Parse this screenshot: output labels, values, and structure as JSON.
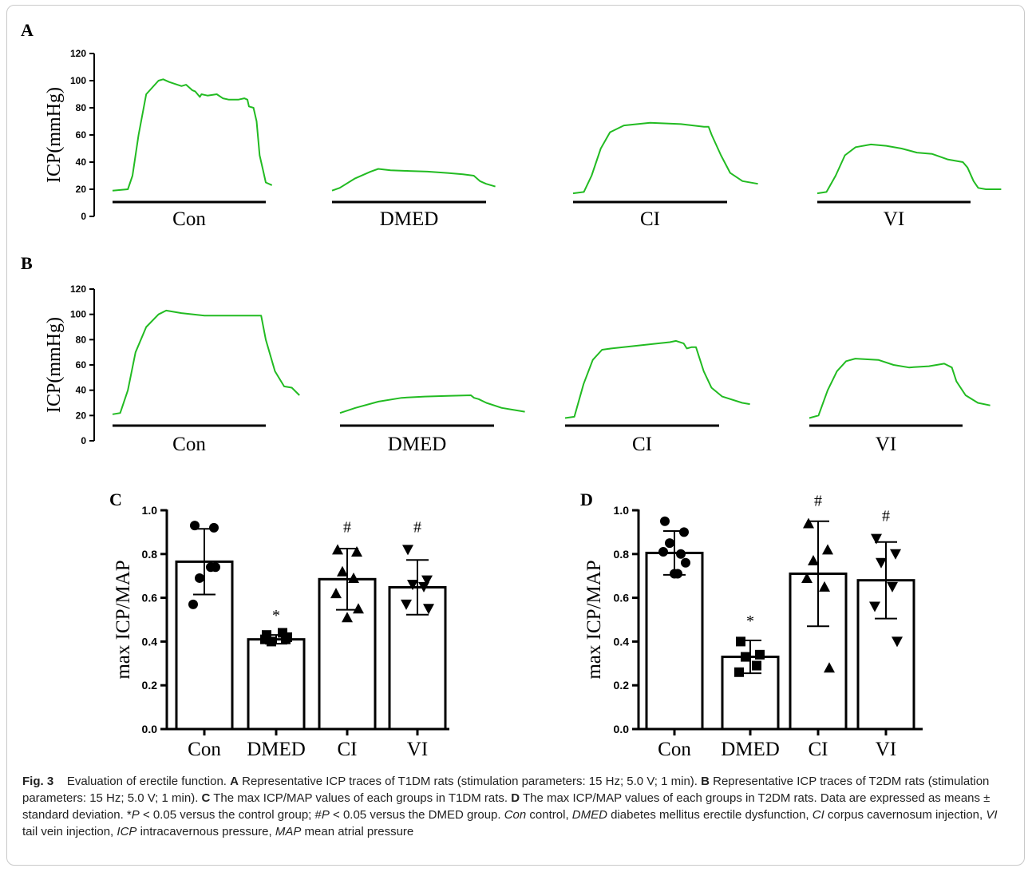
{
  "chart_data": [
    {
      "panel": "A",
      "type": "line",
      "ylabel": "ICP(mmHg)",
      "ylim": [
        0,
        120
      ],
      "yticks": [
        0,
        20,
        40,
        60,
        80,
        100,
        120
      ],
      "line_color": "#22bb22",
      "traces": [
        {
          "label": "Con",
          "points": [
            [
              0,
              19
            ],
            [
              0.1,
              20
            ],
            [
              0.13,
              30
            ],
            [
              0.17,
              60
            ],
            [
              0.22,
              90
            ],
            [
              0.3,
              100
            ],
            [
              0.33,
              101
            ],
            [
              0.37,
              99
            ],
            [
              0.45,
              96
            ],
            [
              0.48,
              97
            ],
            [
              0.52,
              93
            ],
            [
              0.54,
              92
            ],
            [
              0.57,
              88
            ],
            [
              0.58,
              90
            ],
            [
              0.62,
              89
            ],
            [
              0.68,
              90
            ],
            [
              0.72,
              87
            ],
            [
              0.76,
              86
            ],
            [
              0.82,
              86
            ],
            [
              0.86,
              87
            ],
            [
              0.88,
              86
            ],
            [
              0.89,
              81
            ],
            [
              0.92,
              80
            ],
            [
              0.94,
              70
            ],
            [
              0.96,
              45
            ],
            [
              0.98,
              35
            ],
            [
              1.0,
              25
            ],
            [
              1.04,
              23
            ]
          ]
        },
        {
          "label": "DMED",
          "points": [
            [
              0,
              19
            ],
            [
              0.05,
              21
            ],
            [
              0.15,
              28
            ],
            [
              0.25,
              33
            ],
            [
              0.3,
              35
            ],
            [
              0.38,
              34
            ],
            [
              0.5,
              33.5
            ],
            [
              0.62,
              33
            ],
            [
              0.75,
              32
            ],
            [
              0.85,
              31
            ],
            [
              0.92,
              30
            ],
            [
              0.96,
              26
            ],
            [
              1.0,
              24
            ],
            [
              1.06,
              22
            ]
          ]
        },
        {
          "label": "CI",
          "points": [
            [
              0,
              17
            ],
            [
              0.07,
              18
            ],
            [
              0.12,
              30
            ],
            [
              0.18,
              50
            ],
            [
              0.24,
              62
            ],
            [
              0.33,
              67
            ],
            [
              0.5,
              69
            ],
            [
              0.7,
              68
            ],
            [
              0.85,
              66
            ],
            [
              0.88,
              66
            ],
            [
              0.9,
              60
            ],
            [
              0.96,
              45
            ],
            [
              1.02,
              32
            ],
            [
              1.1,
              26
            ],
            [
              1.2,
              24
            ]
          ]
        },
        {
          "label": "VI",
          "points": [
            [
              0,
              17
            ],
            [
              0.06,
              18
            ],
            [
              0.12,
              30
            ],
            [
              0.18,
              45
            ],
            [
              0.25,
              51
            ],
            [
              0.35,
              53
            ],
            [
              0.45,
              52
            ],
            [
              0.55,
              50
            ],
            [
              0.65,
              47
            ],
            [
              0.75,
              46
            ],
            [
              0.85,
              42
            ],
            [
              0.95,
              40
            ],
            [
              0.98,
              36
            ],
            [
              1.02,
              26
            ],
            [
              1.05,
              21
            ],
            [
              1.1,
              20
            ],
            [
              1.2,
              20
            ]
          ]
        }
      ]
    },
    {
      "panel": "B",
      "type": "line",
      "ylabel": "ICP(mmHg)",
      "ylim": [
        0,
        120
      ],
      "yticks": [
        0,
        20,
        40,
        60,
        80,
        100,
        120
      ],
      "line_color": "#22bb22",
      "traces": [
        {
          "label": "Con",
          "points": [
            [
              0,
              21
            ],
            [
              0.05,
              22
            ],
            [
              0.1,
              40
            ],
            [
              0.15,
              70
            ],
            [
              0.22,
              90
            ],
            [
              0.3,
              100
            ],
            [
              0.35,
              103
            ],
            [
              0.45,
              101
            ],
            [
              0.6,
              99
            ],
            [
              0.75,
              99
            ],
            [
              0.9,
              99
            ],
            [
              0.97,
              99
            ],
            [
              1.0,
              80
            ],
            [
              1.06,
              55
            ],
            [
              1.12,
              43
            ],
            [
              1.17,
              42
            ],
            [
              1.22,
              36
            ]
          ]
        },
        {
          "label": "DMED",
          "points": [
            [
              0,
              22
            ],
            [
              0.1,
              26
            ],
            [
              0.25,
              31
            ],
            [
              0.4,
              34
            ],
            [
              0.55,
              35
            ],
            [
              0.7,
              35.5
            ],
            [
              0.85,
              36
            ],
            [
              0.87,
              34
            ],
            [
              0.9,
              33
            ],
            [
              0.95,
              30
            ],
            [
              1.05,
              26
            ],
            [
              1.2,
              23
            ]
          ]
        },
        {
          "label": "CI",
          "points": [
            [
              0,
              18
            ],
            [
              0.06,
              19
            ],
            [
              0.12,
              45
            ],
            [
              0.18,
              64
            ],
            [
              0.24,
              72
            ],
            [
              0.3,
              73
            ],
            [
              0.45,
              75
            ],
            [
              0.6,
              77
            ],
            [
              0.68,
              78
            ],
            [
              0.72,
              79
            ],
            [
              0.77,
              77
            ],
            [
              0.79,
              73
            ],
            [
              0.82,
              74
            ],
            [
              0.85,
              74
            ],
            [
              0.9,
              55
            ],
            [
              0.95,
              42
            ],
            [
              1.02,
              35
            ],
            [
              1.15,
              30
            ],
            [
              1.2,
              29
            ]
          ]
        },
        {
          "label": "VI",
          "points": [
            [
              0,
              18
            ],
            [
              0.06,
              20
            ],
            [
              0.12,
              40
            ],
            [
              0.18,
              55
            ],
            [
              0.24,
              63
            ],
            [
              0.3,
              65
            ],
            [
              0.45,
              64
            ],
            [
              0.55,
              60
            ],
            [
              0.65,
              58
            ],
            [
              0.78,
              59
            ],
            [
              0.88,
              61
            ],
            [
              0.93,
              58
            ],
            [
              0.96,
              47
            ],
            [
              1.02,
              36
            ],
            [
              1.1,
              30
            ],
            [
              1.18,
              28
            ]
          ]
        }
      ]
    },
    {
      "panel": "C",
      "type": "bar",
      "ylabel": "max ICP/MAP",
      "ylim": [
        0,
        1.0
      ],
      "yticks": [
        "0.0",
        "0.2",
        "0.4",
        "0.6",
        "0.8",
        "1.0"
      ],
      "categories": [
        "Con",
        "DMED",
        "CI",
        "VI"
      ],
      "values": [
        0.765,
        0.41,
        0.685,
        0.648
      ],
      "sd": [
        0.15,
        0.02,
        0.14,
        0.125
      ],
      "annotations": [
        "",
        "*",
        "#",
        "#"
      ],
      "markers": [
        "circle",
        "square",
        "triangle-up",
        "triangle-down"
      ],
      "points": [
        [
          0.93,
          0.92,
          0.69,
          0.74,
          0.57,
          0.74
        ],
        [
          0.43,
          0.41,
          0.4,
          0.44,
          0.41,
          0.42
        ],
        [
          0.82,
          0.81,
          0.72,
          0.69,
          0.62,
          0.55,
          0.51
        ],
        [
          0.82,
          0.68,
          0.66,
          0.65,
          0.57,
          0.55
        ]
      ]
    },
    {
      "panel": "D",
      "type": "bar",
      "ylabel": "max ICP/MAP",
      "ylim": [
        0,
        1.0
      ],
      "yticks": [
        "0.0",
        "0.2",
        "0.4",
        "0.6",
        "0.8",
        "1.0"
      ],
      "categories": [
        "Con",
        "DMED",
        "CI",
        "VI"
      ],
      "values": [
        0.805,
        0.33,
        0.71,
        0.68
      ],
      "sd": [
        0.1,
        0.075,
        0.24,
        0.175
      ],
      "annotations": [
        "",
        "*",
        "#",
        "#"
      ],
      "markers": [
        "circle",
        "square",
        "triangle-up",
        "triangle-down"
      ],
      "points": [
        [
          0.95,
          0.9,
          0.85,
          0.8,
          0.81,
          0.76,
          0.71,
          0.71
        ],
        [
          0.4,
          0.34,
          0.33,
          0.29,
          0.26
        ],
        [
          0.94,
          0.82,
          0.77,
          0.65,
          0.69,
          0.28
        ],
        [
          0.87,
          0.8,
          0.76,
          0.65,
          0.56,
          0.4
        ]
      ]
    }
  ],
  "figure": {
    "panel_labels": [
      "A",
      "B",
      "C",
      "D"
    ]
  },
  "caption": {
    "fig_label": "Fig. 3",
    "title": "Evaluation of erectile function.",
    "segments": [
      {
        "b": "A"
      },
      {
        "t": " Representative ICP traces of T1DM rats (stimulation parameters: 15 Hz; 5.0 V; 1 min). "
      },
      {
        "b": "B"
      },
      {
        "t": " Representative ICP traces of T2DM rats (stimulation parameters: 15 Hz; 5.0 V; 1 min). "
      },
      {
        "b": "C"
      },
      {
        "t": " The max ICP/MAP values of each groups in T1DM rats. "
      },
      {
        "b": "D"
      },
      {
        "t": " The max ICP/MAP values of each groups in T2DM rats. Data are expressed as means ± standard deviation. *"
      },
      {
        "i": "P"
      },
      {
        "t": " < 0.05 versus the control group; #"
      },
      {
        "i": "P"
      },
      {
        "t": " < 0.05 versus the DMED group. "
      },
      {
        "i": "Con"
      },
      {
        "t": " control, "
      },
      {
        "i": "DMED"
      },
      {
        "t": " diabetes mellitus erectile dysfunction, "
      },
      {
        "i": "CI"
      },
      {
        "t": " corpus cavernosum injection, "
      },
      {
        "i": "VI"
      },
      {
        "t": " tail vein injection, "
      },
      {
        "i": "ICP"
      },
      {
        "t": " intracavernous pressure, "
      },
      {
        "i": "MAP"
      },
      {
        "t": " mean atrial pressure"
      }
    ]
  }
}
